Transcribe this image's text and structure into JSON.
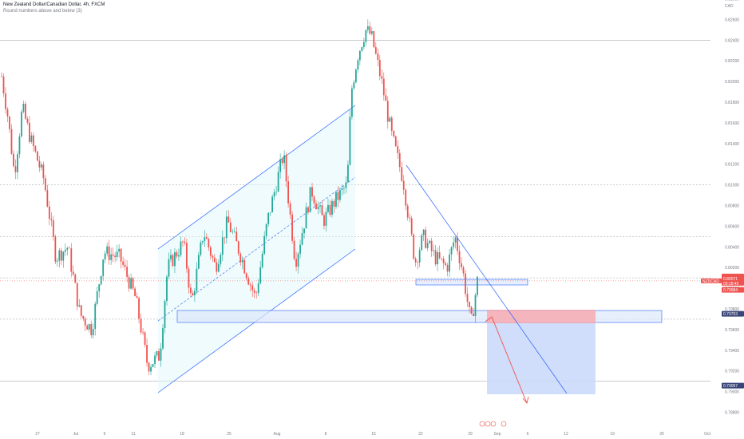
{
  "header": {
    "title": "New Zealand Dollar/Canadian Dollar, 4h, FXCM",
    "subtitle": "Round numbers above and below (3)"
  },
  "currency": "CAD",
  "colors": {
    "up": "#26a69a",
    "down": "#ef5350",
    "channel_line": "#2962ff",
    "channel_fill": "#e0f7fa",
    "zone_fill": "#dde7fb",
    "loss_fill": "#f7aab0",
    "profit_fill": "#c9d8fa",
    "price_tag": "#ef5350",
    "target_tag": "#2962ff"
  },
  "chart_data": {
    "type": "candlestick",
    "symbol": "NZDCAD",
    "timeframe": "4h",
    "y_axis": {
      "range": [
        0.7868,
        0.8275
      ],
      "ticks": [
        "0.82800",
        "0.82600",
        "0.82400",
        "0.82200",
        "0.82000",
        "0.81800",
        "0.81600",
        "0.81400",
        "0.81200",
        "0.81000",
        "0.80800",
        "0.80600",
        "0.80400",
        "0.80200",
        "0.80000",
        "0.79800",
        "0.79600",
        "0.79400",
        "0.79200",
        "0.79000",
        "0.78800"
      ]
    },
    "x_axis": {
      "ticks": [
        "27",
        "Jul",
        "6",
        "11",
        "18",
        "25",
        "Aug",
        "8",
        "15",
        "22",
        "29",
        "Sep",
        "6",
        "12",
        "19",
        "26",
        "Oct"
      ]
    },
    "round_number_levels": [
      0.824,
      0.81,
      0.805,
      0.801,
      0.797,
      0.791
    ],
    "last_price": {
      "label": "NZDCAD",
      "value": "0.80071",
      "countdown": "03:18:45"
    },
    "position": {
      "stop_loss": "0.79984",
      "entry": "0.79753",
      "target": "0.79057"
    },
    "approx_path": [
      {
        "t": 0,
        "price": 0.8215
      },
      {
        "t": 10,
        "price": 0.8165
      },
      {
        "t": 18,
        "price": 0.811
      },
      {
        "t": 28,
        "price": 0.8175
      },
      {
        "t": 38,
        "price": 0.8145
      },
      {
        "t": 55,
        "price": 0.8105
      },
      {
        "t": 70,
        "price": 0.803
      },
      {
        "t": 85,
        "price": 0.804
      },
      {
        "t": 100,
        "price": 0.7975
      },
      {
        "t": 115,
        "price": 0.796
      },
      {
        "t": 130,
        "price": 0.8035
      },
      {
        "t": 150,
        "price": 0.803
      },
      {
        "t": 170,
        "price": 0.799
      },
      {
        "t": 185,
        "price": 0.7925
      },
      {
        "t": 200,
        "price": 0.7935
      },
      {
        "t": 210,
        "price": 0.802
      },
      {
        "t": 230,
        "price": 0.8045
      },
      {
        "t": 240,
        "price": 0.7985
      },
      {
        "t": 255,
        "price": 0.8055
      },
      {
        "t": 270,
        "price": 0.802
      },
      {
        "t": 285,
        "price": 0.8065
      },
      {
        "t": 300,
        "price": 0.8035
      },
      {
        "t": 320,
        "price": 0.799
      },
      {
        "t": 335,
        "price": 0.8065
      },
      {
        "t": 355,
        "price": 0.813
      },
      {
        "t": 370,
        "price": 0.8025
      },
      {
        "t": 390,
        "price": 0.8095
      },
      {
        "t": 405,
        "price": 0.8065
      },
      {
        "t": 420,
        "price": 0.8085
      },
      {
        "t": 435,
        "price": 0.81
      },
      {
        "t": 440,
        "price": 0.819
      },
      {
        "t": 448,
        "price": 0.8225
      },
      {
        "t": 458,
        "price": 0.825
      },
      {
        "t": 465,
        "price": 0.8245
      },
      {
        "t": 478,
        "price": 0.82
      },
      {
        "t": 490,
        "price": 0.815
      },
      {
        "t": 505,
        "price": 0.8105
      },
      {
        "t": 520,
        "price": 0.8025
      },
      {
        "t": 530,
        "price": 0.805
      },
      {
        "t": 545,
        "price": 0.803
      },
      {
        "t": 560,
        "price": 0.802
      },
      {
        "t": 570,
        "price": 0.805
      },
      {
        "t": 580,
        "price": 0.8015
      },
      {
        "t": 590,
        "price": 0.7965
      },
      {
        "t": 598,
        "price": 0.8007
      }
    ]
  }
}
